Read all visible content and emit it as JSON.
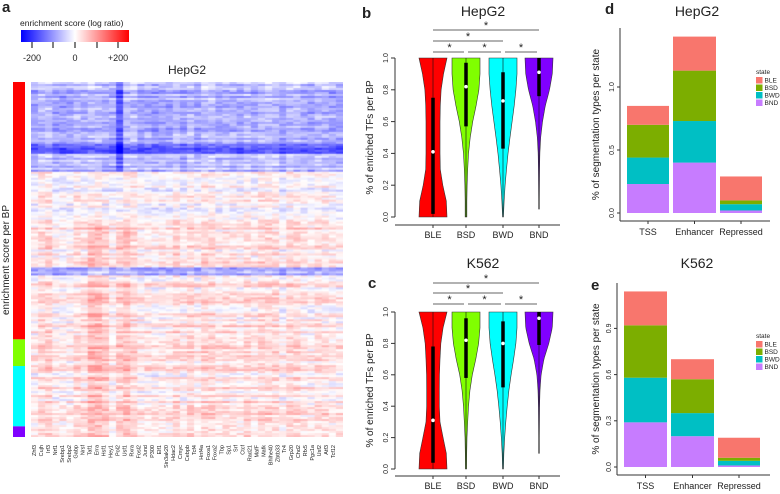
{
  "chart_data": [
    {
      "panel": "a",
      "type": "heatmap",
      "title": "HepG2",
      "colorbar": {
        "title": "enrichment score (log ratio)",
        "ticks": [
          "-200",
          "0",
          "+200"
        ],
        "range": [
          -250,
          250
        ],
        "low_color": "#0000ff",
        "mid_color": "#ffffff",
        "high_color": "#ff0000"
      },
      "ylabel": "enrichment score per BP",
      "row_groups": [
        {
          "state": "BLE",
          "color": "#ff0000",
          "fraction": 0.725
        },
        {
          "state": "BSD",
          "color": "#80ff00",
          "fraction": 0.075
        },
        {
          "state": "BWD",
          "color": "#00ffff",
          "fraction": 0.17
        },
        {
          "state": "BND",
          "color": "#8000ff",
          "fraction": 0.03
        }
      ],
      "columns": [
        "Zhf3",
        "Cujh",
        "Irf3",
        "Nrf1",
        "Srebp1",
        "Srebp2",
        "Gabp",
        "Nrsf",
        "Taf1",
        "Erra",
        "Hsf1",
        "Hey1",
        "Pol2",
        "Usf1",
        "Rxra",
        "Fosl2",
        "Jund",
        "P300",
        "Elf1",
        "Sin3ak20",
        "Hdac2",
        "Cmyc",
        "Cebpb",
        "Tcf4",
        "Hnf4a",
        "Foxa1",
        "Foxa2",
        "Tbp",
        "Sp1",
        "Srf",
        "Ctcf",
        "Rad21",
        "MafF",
        "Mafk",
        "Bhlhe40",
        "Zbtb33",
        "Tr4",
        "Grp20",
        "Chd2",
        "Rfx5",
        "Pgc1a",
        "Usf2",
        "Atf3",
        "Tcf12"
      ]
    },
    {
      "panel": "b",
      "type": "violin",
      "title": "HepG2",
      "ylabel": "% of enriched TFs per BP",
      "yticks": [
        "0.0",
        "0.2",
        "0.4",
        "0.6",
        "0.8",
        "1.0"
      ],
      "ylim": [
        0,
        1
      ],
      "categories": [
        "BLE",
        "BSD",
        "BWD",
        "BND"
      ],
      "colors": [
        "#ff0000",
        "#80ff00",
        "#00ffff",
        "#8000ff"
      ],
      "median": [
        0.41,
        0.82,
        0.73,
        0.91
      ],
      "q1": [
        0.02,
        0.57,
        0.43,
        0.76
      ],
      "q3": [
        0.75,
        0.97,
        0.91,
        1.0
      ],
      "min": [
        0.0,
        0.0,
        0.0,
        0.05
      ],
      "max": [
        1.0,
        1.0,
        1.0,
        1.0
      ],
      "density": [
        [
          1,
          0.95,
          0.7,
          0.52,
          0.5,
          0.5,
          0.5,
          0.52,
          0.58,
          0.75,
          1
        ],
        [
          0.06,
          0.06,
          0.08,
          0.12,
          0.18,
          0.3,
          0.48,
          0.72,
          0.92,
          1,
          1
        ],
        [
          0.03,
          0.08,
          0.15,
          0.25,
          0.36,
          0.5,
          0.65,
          0.8,
          0.92,
          1,
          1
        ],
        [
          0,
          0.02,
          0.03,
          0.04,
          0.06,
          0.12,
          0.25,
          0.45,
          0.75,
          0.95,
          1
        ]
      ],
      "comparisons": [
        {
          "pair": [
            "BLE",
            "BSD"
          ],
          "label": "*"
        },
        {
          "pair": [
            "BSD",
            "BWD"
          ],
          "label": "*"
        },
        {
          "pair": [
            "BWD",
            "BND"
          ],
          "label": "*"
        },
        {
          "pair": [
            "BLE",
            "BWD"
          ],
          "label": "*"
        },
        {
          "pair": [
            "BLE",
            "BND"
          ],
          "label": "*"
        }
      ]
    },
    {
      "panel": "c",
      "type": "violin",
      "title": "K562",
      "ylabel": "% of enriched TFs per BP",
      "yticks": [
        "0.0",
        "0.2",
        "0.4",
        "0.6",
        "0.8",
        "1.0"
      ],
      "ylim": [
        0,
        1
      ],
      "categories": [
        "BLE",
        "BSD",
        "BWD",
        "BND"
      ],
      "colors": [
        "#ff0000",
        "#80ff00",
        "#00ffff",
        "#8000ff"
      ],
      "median": [
        0.31,
        0.82,
        0.8,
        0.96
      ],
      "q1": [
        0.04,
        0.58,
        0.52,
        0.79
      ],
      "q3": [
        0.78,
        0.96,
        0.94,
        1.0
      ],
      "min": [
        0.0,
        0.0,
        0.0,
        0.1
      ],
      "max": [
        1.0,
        1.0,
        1.0,
        1.0
      ],
      "density": [
        [
          1,
          0.95,
          0.72,
          0.5,
          0.45,
          0.45,
          0.46,
          0.5,
          0.56,
          0.72,
          1
        ],
        [
          0.04,
          0.05,
          0.07,
          0.12,
          0.18,
          0.28,
          0.45,
          0.7,
          0.9,
          1,
          1
        ],
        [
          0.03,
          0.06,
          0.12,
          0.2,
          0.3,
          0.42,
          0.58,
          0.76,
          0.92,
          1,
          1
        ],
        [
          0,
          0.02,
          0.02,
          0.03,
          0.04,
          0.07,
          0.15,
          0.35,
          0.7,
          0.95,
          1
        ]
      ],
      "comparisons": [
        {
          "pair": [
            "BLE",
            "BSD"
          ],
          "label": "*"
        },
        {
          "pair": [
            "BSD",
            "BWD"
          ],
          "label": "*"
        },
        {
          "pair": [
            "BWD",
            "BND"
          ],
          "label": "*"
        },
        {
          "pair": [
            "BLE",
            "BWD"
          ],
          "label": "*"
        },
        {
          "pair": [
            "BLE",
            "BND"
          ],
          "label": "*"
        }
      ]
    },
    {
      "panel": "d",
      "type": "bar",
      "stacked": true,
      "title": "HepG2",
      "ylabel": "% of segmentation types per state",
      "categories": [
        "TSS",
        "Enhancer",
        "Repressed"
      ],
      "yticks": [
        0.0,
        0.5,
        1.0
      ],
      "ytick_labels": [
        "0.0",
        "0.5",
        "1.0"
      ],
      "legend": {
        "title": "state",
        "position": "right"
      },
      "series": [
        {
          "name": "BND",
          "color": "#c77cff",
          "values": [
            0.23,
            0.4,
            0.02
          ]
        },
        {
          "name": "BWD",
          "color": "#00bfc4",
          "values": [
            0.21,
            0.33,
            0.05
          ]
        },
        {
          "name": "BSD",
          "color": "#7cae00",
          "values": [
            0.26,
            0.4,
            0.03
          ]
        },
        {
          "name": "BLE",
          "color": "#f8766d",
          "values": [
            0.15,
            0.27,
            0.19
          ]
        }
      ]
    },
    {
      "panel": "e",
      "type": "bar",
      "stacked": true,
      "title": "K562",
      "ylabel": "% of segmentation types per state",
      "categories": [
        "TSS",
        "Enhancer",
        "Repressed"
      ],
      "yticks": [
        0.0,
        0.3,
        0.6,
        0.9
      ],
      "ytick_labels": [
        "0.0",
        "0.3",
        "0.6",
        "0.9"
      ],
      "legend": {
        "title": "state",
        "position": "right"
      },
      "series": [
        {
          "name": "BND",
          "color": "#c77cff",
          "values": [
            0.29,
            0.2,
            0.01
          ]
        },
        {
          "name": "BWD",
          "color": "#00bfc4",
          "values": [
            0.29,
            0.15,
            0.03
          ]
        },
        {
          "name": "BSD",
          "color": "#7cae00",
          "values": [
            0.34,
            0.22,
            0.02
          ]
        },
        {
          "name": "BLE",
          "color": "#f8766d",
          "values": [
            0.22,
            0.13,
            0.13
          ]
        }
      ]
    }
  ]
}
